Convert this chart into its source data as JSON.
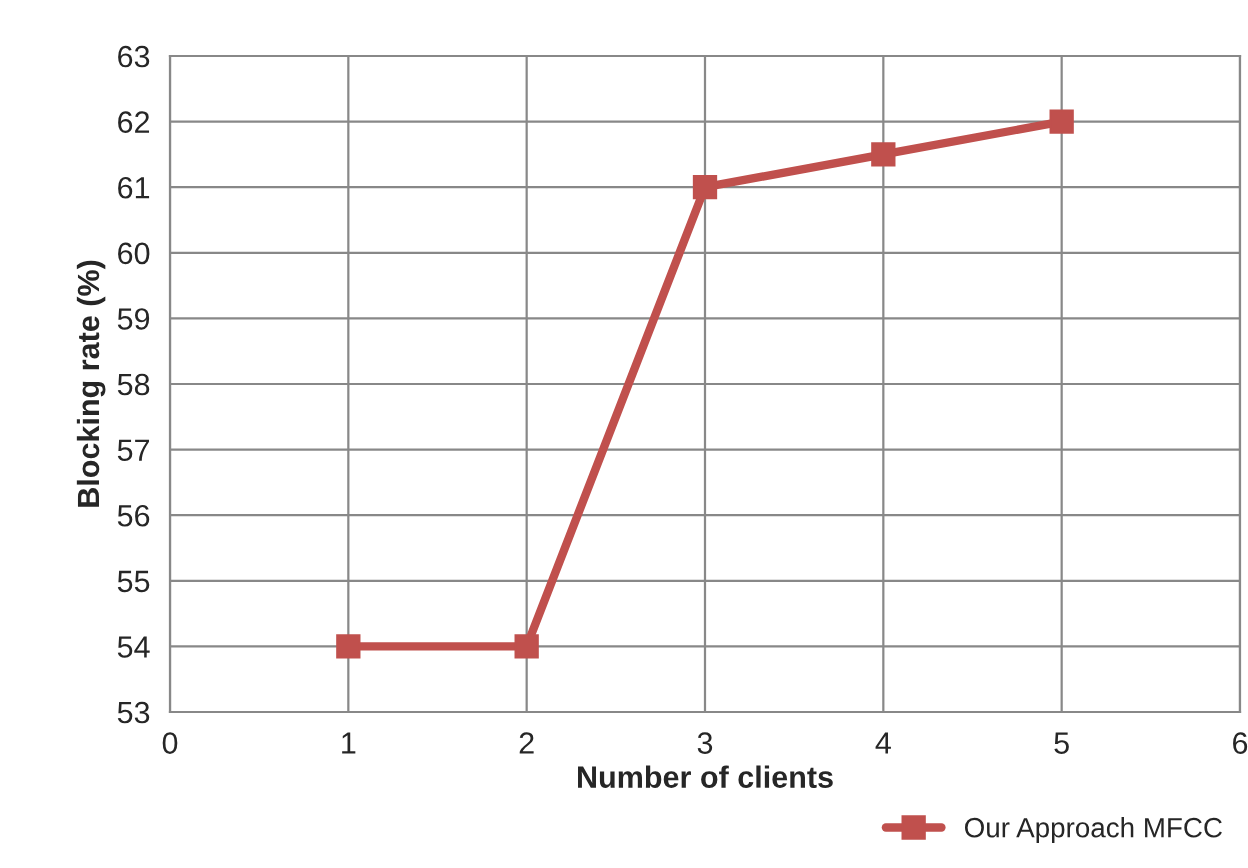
{
  "chart_data": {
    "type": "line",
    "xlabel": "Number of clients",
    "ylabel": "Blocking rate (%)",
    "x": [
      1,
      2,
      3,
      4,
      5
    ],
    "series": [
      {
        "name": "Our Approach MFCC",
        "color": "#c0504d",
        "values": [
          54,
          54,
          61,
          61.5,
          62
        ]
      }
    ],
    "xlim": [
      0,
      6
    ],
    "xticks": [
      0,
      1,
      2,
      3,
      4,
      5,
      6
    ],
    "ylim": [
      53,
      63
    ],
    "yticks": [
      53,
      54,
      55,
      56,
      57,
      58,
      59,
      60,
      61,
      62,
      63
    ],
    "grid": true,
    "legend": "bottom right",
    "marker": "square",
    "line_style": "solid"
  }
}
